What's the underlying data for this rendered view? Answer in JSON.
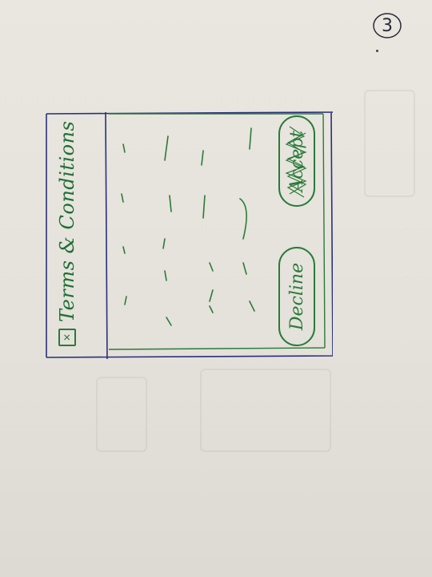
{
  "page": {
    "number": "3"
  },
  "dialog": {
    "title": "Terms & Conditions",
    "checkbox_checked": true,
    "body_placeholder_lines": 18
  },
  "buttons": {
    "decline_label": "Decline",
    "accept_label": "Accept"
  },
  "colors": {
    "ink_frame": "#2a2f7a",
    "ink_green": "#2a7a3a",
    "paper": "#e6e4dc"
  }
}
